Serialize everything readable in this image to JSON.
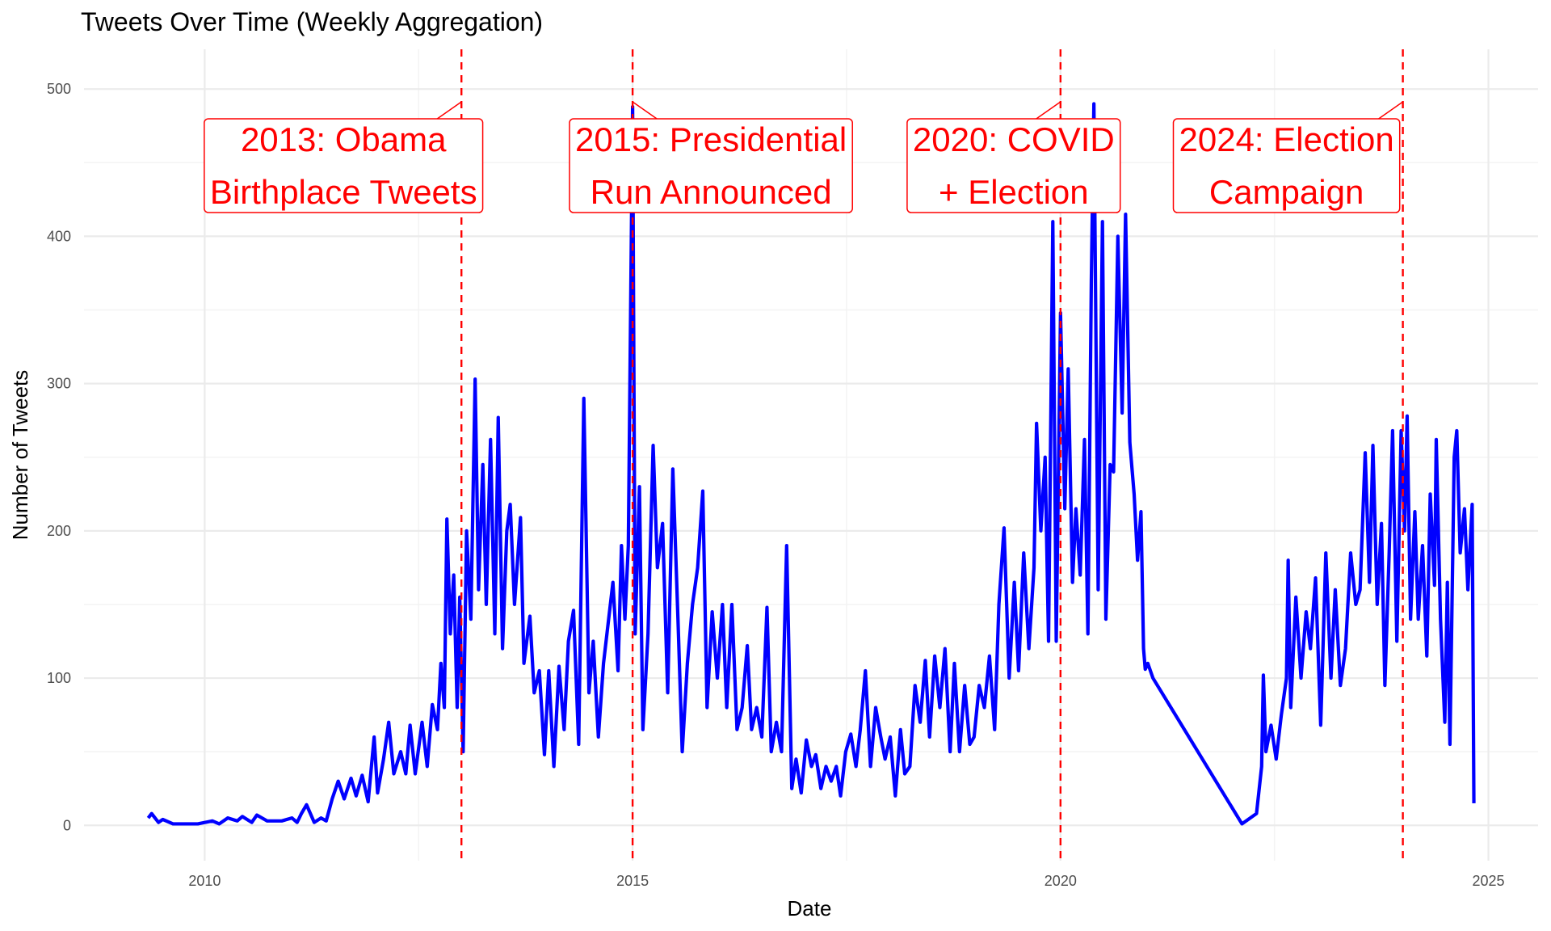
{
  "chart_data": {
    "type": "line",
    "title": "Tweets Over Time (Weekly Aggregation)",
    "x_label": "Date",
    "y_label": "Number of Tweets",
    "xlim": [
      2008.59,
      2025.58
    ],
    "ylim": [
      -24,
      527
    ],
    "xticks": [
      2010,
      2015,
      2020,
      2025
    ],
    "yticks": [
      0,
      100,
      200,
      300,
      400,
      500
    ],
    "x_minor_ticks": [
      2012.5,
      2017.5,
      2022.5
    ],
    "y_minor_ticks": [
      50,
      150,
      250,
      350,
      450
    ],
    "grid": true,
    "series": [
      {
        "name": "Tweets",
        "color": "#0000ff",
        "x": [
          2009.34,
          2009.38,
          2009.46,
          2009.51,
          2009.63,
          2009.92,
          2010.09,
          2010.17,
          2010.27,
          2010.38,
          2010.44,
          2010.55,
          2010.61,
          2010.73,
          2010.9,
          2011.02,
          2011.08,
          2011.13,
          2011.19,
          2011.28,
          2011.36,
          2011.42,
          2011.49,
          2011.56,
          2011.63,
          2011.71,
          2011.77,
          2011.84,
          2011.91,
          2011.98,
          2012.02,
          2012.09,
          2012.15,
          2012.21,
          2012.29,
          2012.35,
          2012.4,
          2012.46,
          2012.54,
          2012.6,
          2012.66,
          2012.72,
          2012.76,
          2012.8,
          2012.83,
          2012.87,
          2012.91,
          2012.95,
          2012.98,
          2013.02,
          2013.06,
          2013.11,
          2013.16,
          2013.2,
          2013.25,
          2013.29,
          2013.34,
          2013.39,
          2013.43,
          2013.48,
          2013.53,
          2013.57,
          2013.62,
          2013.69,
          2013.73,
          2013.8,
          2013.85,
          2013.91,
          2013.97,
          2014.02,
          2014.08,
          2014.14,
          2014.2,
          2014.25,
          2014.31,
          2014.37,
          2014.43,
          2014.49,
          2014.54,
          2014.6,
          2014.66,
          2014.72,
          2014.77,
          2014.83,
          2014.87,
          2014.91,
          2014.95,
          2015.0,
          2015.03,
          2015.08,
          2015.12,
          2015.18,
          2015.24,
          2015.29,
          2015.35,
          2015.41,
          2015.47,
          2015.53,
          2015.58,
          2015.64,
          2015.7,
          2015.76,
          2015.82,
          2015.87,
          2015.93,
          2015.99,
          2016.05,
          2016.1,
          2016.16,
          2016.22,
          2016.28,
          2016.34,
          2016.39,
          2016.45,
          2016.51,
          2016.57,
          2016.62,
          2016.68,
          2016.74,
          2016.8,
          2016.86,
          2016.91,
          2016.97,
          2017.03,
          2017.09,
          2017.14,
          2017.2,
          2017.26,
          2017.32,
          2017.38,
          2017.43,
          2017.49,
          2017.55,
          2017.61,
          2017.66,
          2017.72,
          2017.78,
          2017.84,
          2017.9,
          2017.95,
          2018.01,
          2018.07,
          2018.13,
          2018.18,
          2018.24,
          2018.3,
          2018.36,
          2018.42,
          2018.47,
          2018.53,
          2018.59,
          2018.65,
          2018.71,
          2018.76,
          2018.82,
          2018.88,
          2018.94,
          2018.99,
          2019.05,
          2019.11,
          2019.17,
          2019.23,
          2019.28,
          2019.34,
          2019.4,
          2019.46,
          2019.51,
          2019.57,
          2019.63,
          2019.69,
          2019.72,
          2019.77,
          2019.82,
          2019.86,
          2019.91,
          2019.95,
          2020.0,
          2020.05,
          2020.09,
          2020.14,
          2020.18,
          2020.23,
          2020.28,
          2020.32,
          2020.36,
          2020.39,
          2020.44,
          2020.49,
          2020.53,
          2020.58,
          2020.62,
          2020.67,
          2020.72,
          2020.76,
          2020.81,
          2020.86,
          2020.9,
          2020.94,
          2020.97,
          2020.99,
          2021.02,
          2021.08,
          2022.12,
          2022.29,
          2022.35,
          2022.37,
          2022.4,
          2022.46,
          2022.52,
          2022.58,
          2022.64,
          2022.66,
          2022.69,
          2022.75,
          2022.81,
          2022.87,
          2022.92,
          2022.98,
          2023.04,
          2023.1,
          2023.16,
          2023.21,
          2023.27,
          2023.33,
          2023.39,
          2023.45,
          2023.5,
          2023.56,
          2023.61,
          2023.65,
          2023.7,
          2023.75,
          2023.79,
          2023.84,
          2023.88,
          2023.93,
          2023.98,
          2024.02,
          2024.05,
          2024.09,
          2024.14,
          2024.18,
          2024.23,
          2024.28,
          2024.32,
          2024.37,
          2024.39,
          2024.44,
          2024.49,
          2024.52,
          2024.55,
          2024.6,
          2024.63,
          2024.67,
          2024.72,
          2024.76,
          2024.81,
          2024.83
        ],
        "values": [
          5,
          8,
          2,
          4,
          1,
          1,
          3,
          1,
          5,
          3,
          6,
          2,
          7,
          3,
          3,
          5,
          2,
          8,
          14,
          2,
          5,
          3,
          18,
          30,
          18,
          32,
          20,
          34,
          16,
          60,
          22,
          45,
          70,
          35,
          50,
          35,
          68,
          35,
          70,
          40,
          82,
          65,
          110,
          80,
          208,
          130,
          170,
          80,
          155,
          50,
          200,
          140,
          303,
          160,
          245,
          150,
          262,
          130,
          277,
          120,
          200,
          218,
          150,
          209,
          110,
          142,
          90,
          105,
          48,
          105,
          40,
          108,
          65,
          125,
          146,
          55,
          290,
          90,
          125,
          60,
          110,
          140,
          165,
          105,
          190,
          140,
          190,
          488,
          130,
          230,
          65,
          130,
          258,
          175,
          205,
          90,
          242,
          140,
          50,
          110,
          150,
          175,
          227,
          80,
          145,
          100,
          150,
          80,
          150,
          65,
          80,
          122,
          65,
          80,
          60,
          148,
          50,
          70,
          50,
          190,
          25,
          45,
          22,
          58,
          40,
          48,
          25,
          40,
          30,
          40,
          20,
          50,
          62,
          40,
          65,
          105,
          40,
          80,
          60,
          45,
          60,
          20,
          65,
          35,
          40,
          95,
          70,
          112,
          60,
          115,
          80,
          120,
          50,
          110,
          50,
          95,
          55,
          60,
          95,
          80,
          115,
          65,
          150,
          202,
          100,
          165,
          105,
          185,
          120,
          175,
          273,
          200,
          250,
          125,
          410,
          125,
          348,
          215,
          310,
          165,
          215,
          170,
          262,
          130,
          370,
          490,
          160,
          410,
          140,
          245,
          240,
          400,
          280,
          415,
          260,
          225,
          180,
          213,
          120,
          106,
          110,
          100,
          1,
          8,
          40,
          102,
          50,
          68,
          45,
          75,
          100,
          180,
          80,
          155,
          100,
          145,
          120,
          168,
          68,
          185,
          100,
          160,
          95,
          120,
          185,
          150,
          160,
          253,
          165,
          258,
          150,
          205,
          95,
          185,
          268,
          125,
          268,
          200,
          278,
          140,
          213,
          140,
          190,
          115,
          225,
          163,
          262,
          140,
          70,
          165,
          55,
          250,
          268,
          185,
          215,
          160,
          218,
          15
        ]
      }
    ],
    "annotations": [
      {
        "x": 2013,
        "lines": [
          "2013: Obama",
          "Birthplace Tweets"
        ],
        "color": "#ff0000"
      },
      {
        "x": 2015,
        "lines": [
          "2015: Presidential",
          "Run Announced"
        ],
        "color": "#ff0000"
      },
      {
        "x": 2020,
        "lines": [
          "2020: COVID",
          "+ Election"
        ],
        "color": "#ff0000"
      },
      {
        "x": 2024,
        "lines": [
          "2024: Election",
          "Campaign"
        ],
        "color": "#ff0000"
      }
    ]
  }
}
